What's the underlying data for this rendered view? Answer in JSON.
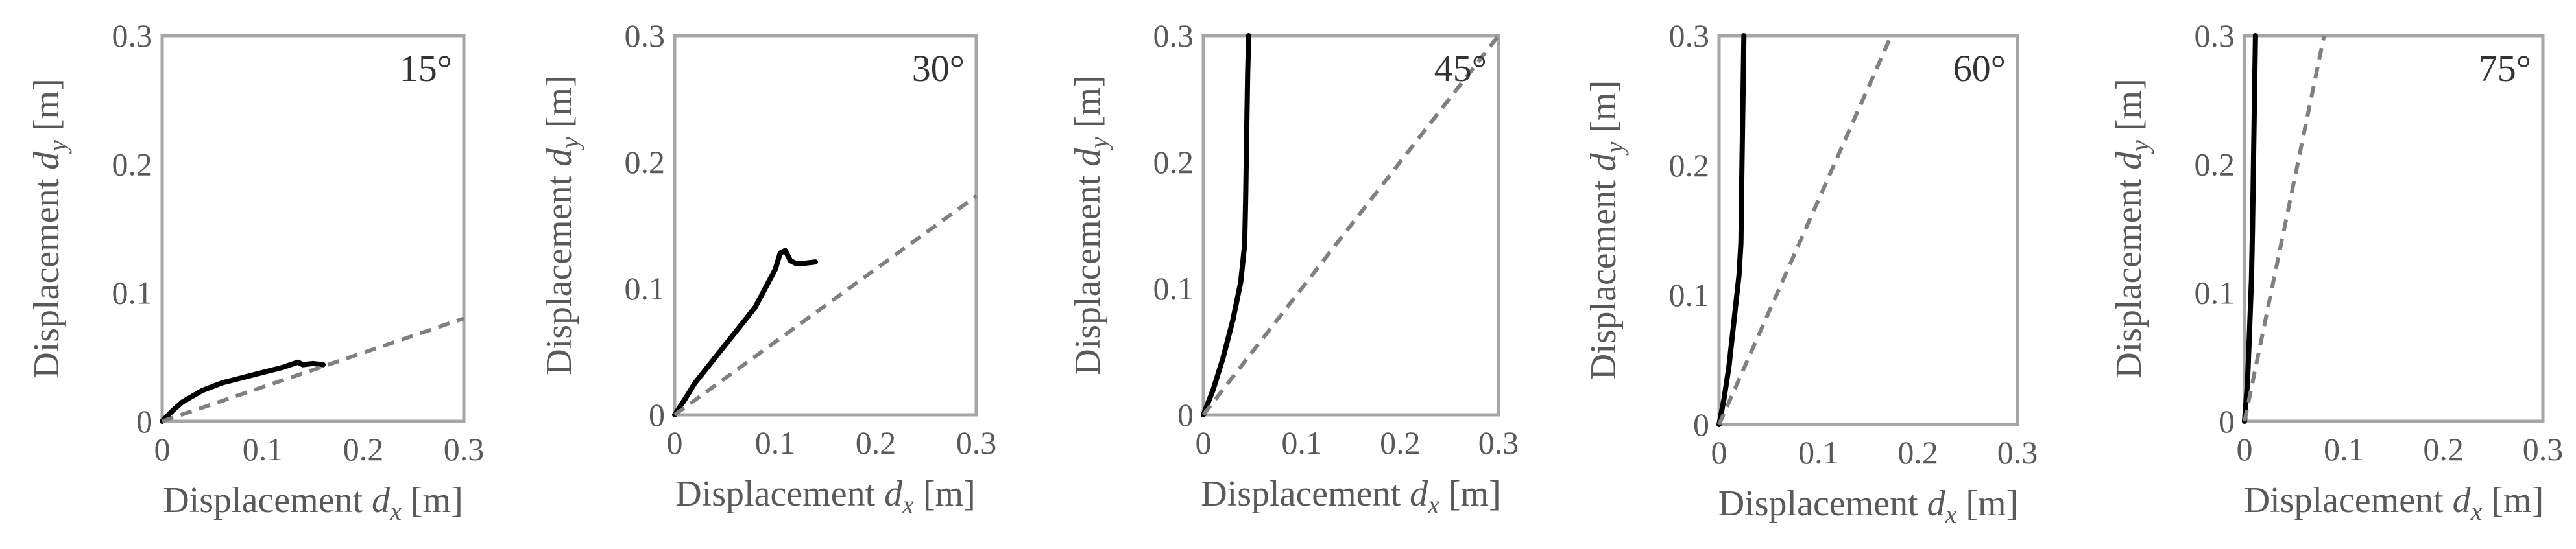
{
  "chart_data": [
    {
      "type": "line",
      "annotation": "15°",
      "xlabel": "Displacement",
      "xlabel_var": "d",
      "xlabel_sub": "x",
      "xlabel_unit": "[m]",
      "ylabel": "Displacement",
      "ylabel_var": "d",
      "ylabel_sub": "y",
      "ylabel_unit": "[m]",
      "xlim": [
        0,
        0.3
      ],
      "ylim": [
        0,
        0.3
      ],
      "xticks": [
        "0",
        "0.1",
        "0.2",
        "0.3"
      ],
      "yticks": [
        "0",
        "0.1",
        "0.2",
        "0.3"
      ],
      "grid": false,
      "series": [
        {
          "style": "solid",
          "color": "#000000",
          "points": [
            [
              0,
              0
            ],
            [
              0.01,
              0.008
            ],
            [
              0.02,
              0.015
            ],
            [
              0.04,
              0.024
            ],
            [
              0.06,
              0.03
            ],
            [
              0.08,
              0.034
            ],
            [
              0.1,
              0.038
            ],
            [
              0.12,
              0.042
            ],
            [
              0.135,
              0.046
            ],
            [
              0.14,
              0.044
            ],
            [
              0.15,
              0.045
            ],
            [
              0.16,
              0.044
            ]
          ]
        },
        {
          "style": "dashed",
          "color": "#808080",
          "points": [
            [
              0,
              0
            ],
            [
              0.3,
              0.08
            ]
          ]
        }
      ]
    },
    {
      "type": "line",
      "annotation": "30°",
      "xlabel": "Displacement",
      "xlabel_var": "d",
      "xlabel_sub": "x",
      "xlabel_unit": "[m]",
      "ylabel": "Displacement",
      "ylabel_var": "d",
      "ylabel_sub": "y",
      "ylabel_unit": "[m]",
      "xlim": [
        0,
        0.3
      ],
      "ylim": [
        0,
        0.3
      ],
      "xticks": [
        "0",
        "0.1",
        "0.2",
        "0.3"
      ],
      "yticks": [
        "0",
        "0.1",
        "0.2",
        "0.3"
      ],
      "grid": false,
      "series": [
        {
          "style": "solid",
          "color": "#000000",
          "points": [
            [
              0,
              0
            ],
            [
              0.01,
              0.012
            ],
            [
              0.02,
              0.025
            ],
            [
              0.04,
              0.045
            ],
            [
              0.06,
              0.065
            ],
            [
              0.08,
              0.085
            ],
            [
              0.09,
              0.1
            ],
            [
              0.1,
              0.115
            ],
            [
              0.105,
              0.128
            ],
            [
              0.11,
              0.13
            ],
            [
              0.115,
              0.122
            ],
            [
              0.12,
              0.12
            ],
            [
              0.13,
              0.12
            ],
            [
              0.14,
              0.121
            ]
          ]
        },
        {
          "style": "dashed",
          "color": "#808080",
          "points": [
            [
              0,
              0
            ],
            [
              0.3,
              0.173
            ]
          ]
        }
      ]
    },
    {
      "type": "line",
      "annotation": "45°",
      "xlabel": "Displacement",
      "xlabel_var": "d",
      "xlabel_sub": "x",
      "xlabel_unit": "[m]",
      "ylabel": "Displacement",
      "ylabel_var": "d",
      "ylabel_sub": "y",
      "ylabel_unit": "[m]",
      "xlim": [
        0,
        0.3
      ],
      "ylim": [
        0,
        0.3
      ],
      "xticks": [
        "0",
        "0.1",
        "0.2",
        "0.3"
      ],
      "yticks": [
        "0",
        "0.1",
        "0.2",
        "0.3"
      ],
      "grid": false,
      "series": [
        {
          "style": "solid",
          "color": "#000000",
          "points": [
            [
              0,
              0
            ],
            [
              0.01,
              0.02
            ],
            [
              0.02,
              0.045
            ],
            [
              0.03,
              0.075
            ],
            [
              0.038,
              0.105
            ],
            [
              0.042,
              0.135
            ],
            [
              0.043,
              0.17
            ],
            [
              0.044,
              0.22
            ],
            [
              0.045,
              0.27
            ],
            [
              0.046,
              0.3
            ]
          ]
        },
        {
          "style": "dashed",
          "color": "#808080",
          "points": [
            [
              0,
              0
            ],
            [
              0.3,
              0.3
            ]
          ]
        }
      ]
    },
    {
      "type": "line",
      "annotation": "60°",
      "xlabel": "Displacement",
      "xlabel_var": "d",
      "xlabel_sub": "x",
      "xlabel_unit": "[m]",
      "ylabel": "Displacement",
      "ylabel_var": "d",
      "ylabel_sub": "y",
      "ylabel_unit": "[m]",
      "xlim": [
        0,
        0.3
      ],
      "ylim": [
        0,
        0.3
      ],
      "xticks": [
        "0",
        "0.1",
        "0.2",
        "0.3"
      ],
      "yticks": [
        "0",
        "0.1",
        "0.2",
        "0.3"
      ],
      "grid": false,
      "series": [
        {
          "style": "solid",
          "color": "#000000",
          "points": [
            [
              0,
              0
            ],
            [
              0.005,
              0.02
            ],
            [
              0.01,
              0.045
            ],
            [
              0.015,
              0.08
            ],
            [
              0.02,
              0.115
            ],
            [
              0.022,
              0.14
            ],
            [
              0.023,
              0.2
            ],
            [
              0.024,
              0.25
            ],
            [
              0.025,
              0.3
            ]
          ]
        },
        {
          "style": "dashed",
          "color": "#808080",
          "points": [
            [
              0,
              0
            ],
            [
              0.173,
              0.3
            ]
          ]
        }
      ]
    },
    {
      "type": "line",
      "annotation": "75°",
      "xlabel": "Displacement",
      "xlabel_var": "d",
      "xlabel_sub": "x",
      "xlabel_unit": "[m]",
      "ylabel": "Displacement",
      "ylabel_var": "d",
      "ylabel_sub": "y",
      "ylabel_unit": "[m]",
      "xlim": [
        0,
        0.3
      ],
      "ylim": [
        0,
        0.3
      ],
      "xticks": [
        "0",
        "0.1",
        "0.2",
        "0.3"
      ],
      "yticks": [
        "0",
        "0.1",
        "0.2",
        "0.3"
      ],
      "grid": false,
      "series": [
        {
          "style": "solid",
          "color": "#000000",
          "points": [
            [
              0,
              0
            ],
            [
              0.003,
              0.03
            ],
            [
              0.005,
              0.07
            ],
            [
              0.007,
              0.11
            ],
            [
              0.008,
              0.15
            ],
            [
              0.009,
              0.2
            ],
            [
              0.01,
              0.25
            ],
            [
              0.011,
              0.3
            ]
          ]
        },
        {
          "style": "dashed",
          "color": "#808080",
          "points": [
            [
              0,
              0
            ],
            [
              0.08,
              0.3
            ]
          ]
        }
      ]
    }
  ]
}
